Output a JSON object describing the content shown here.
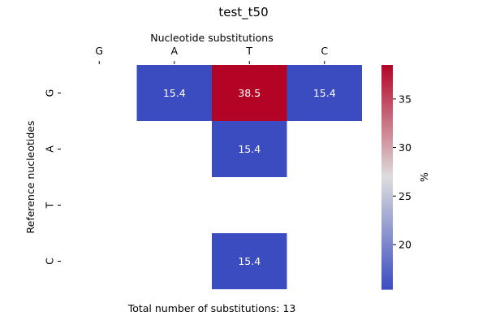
{
  "chart_data": {
    "type": "heatmap",
    "title": "test_t50",
    "xlabel": "Nucleotide substitutions",
    "ylabel": "Reference nucleotides",
    "x_categories": [
      "G",
      "A",
      "T",
      "C"
    ],
    "y_categories": [
      "G",
      "A",
      "T",
      "C"
    ],
    "x_axis_position": "top",
    "values": [
      [
        null,
        15.4,
        38.5,
        15.4
      ],
      [
        null,
        null,
        15.4,
        null
      ],
      [
        null,
        null,
        null,
        null
      ],
      [
        null,
        null,
        15.4,
        null
      ]
    ],
    "colormap": "coolwarm",
    "colormap_low": "#3b4cc0",
    "colormap_mid": "#dddddd",
    "colormap_high": "#b40426",
    "colorbar": {
      "label": "%",
      "min": 15.4,
      "max": 38.5,
      "ticks": [
        20,
        25,
        30,
        35
      ]
    },
    "footer": "Total number of substitutions: 13"
  }
}
